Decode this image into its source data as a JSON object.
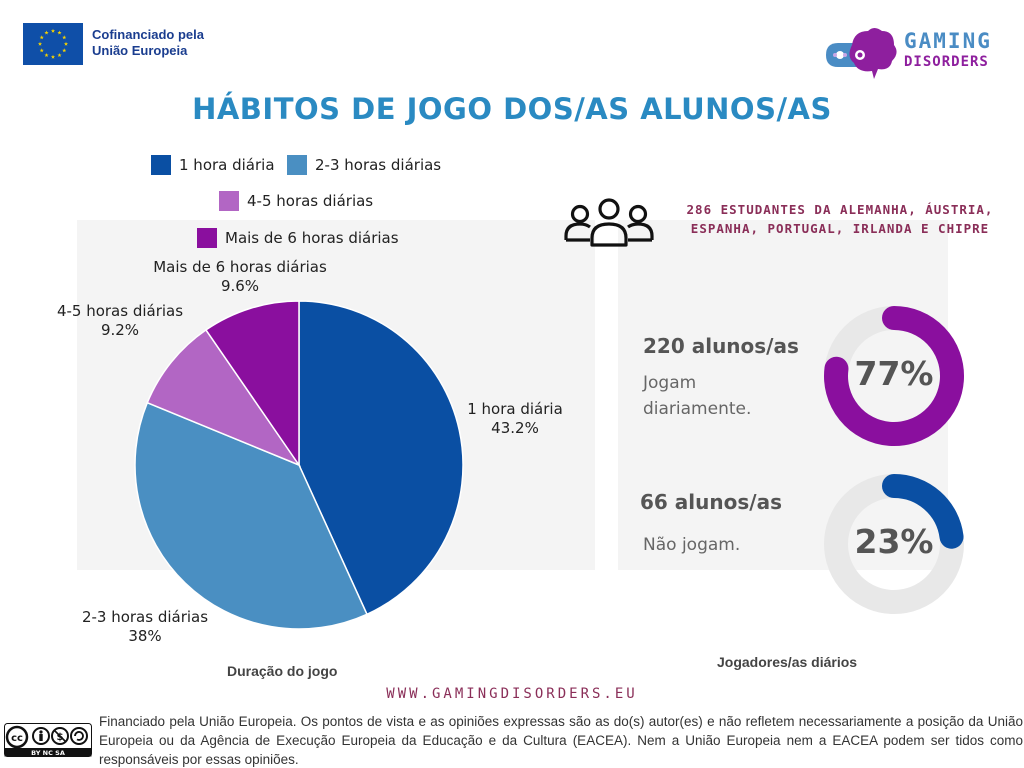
{
  "header": {
    "eu_line1": "Cofinanciado pela",
    "eu_line2": "União Europeia",
    "logo_line1": "GAMING",
    "logo_line2": "DISORDERS"
  },
  "title": "HÁBITOS DE JOGO DOS/AS ALUNOS/AS",
  "colors": {
    "one_hour": "#0a4fa3",
    "two_three": "#4a8fc2",
    "four_five": "#b266c4",
    "six_plus": "#8a0f9e",
    "ring_track": "#e8e8e8",
    "ring_daily": "#8a0f9e",
    "ring_not": "#0a4fa3"
  },
  "chart_data": [
    {
      "type": "pie",
      "xlabel": "Duração do jogo",
      "legend_position": "top",
      "slices": [
        {
          "label": "1 hora diária",
          "value": 43.2,
          "display": "43.2%",
          "color": "#0a4fa3"
        },
        {
          "label": "2-3 horas diárias",
          "value": 38,
          "display": "38%",
          "color": "#4a8fc2"
        },
        {
          "label": "4-5 horas diárias",
          "value": 9.2,
          "display": "9.2%",
          "color": "#b266c4"
        },
        {
          "label": "Mais de 6 horas diárias",
          "value": 9.6,
          "display": "9.6%",
          "color": "#8a0f9e"
        }
      ]
    },
    {
      "type": "pie",
      "xlabel": "Jogadores/as diários",
      "note": "286 ESTUDANTES DA ALEMANHA, ÁUSTRIA, ESPANHA, PORTUGAL, IRLANDA E CHIPRE",
      "stats": [
        {
          "count": "220 alunos/as",
          "desc_line1": "Jogam",
          "desc_line2": "diariamente.",
          "value": 77,
          "display": "77%",
          "color": "#8a0f9e"
        },
        {
          "count": "66 alunos/as",
          "desc_line1": "Não jogam.",
          "desc_line2": "",
          "value": 23,
          "display": "23%",
          "color": "#0a4fa3"
        }
      ]
    }
  ],
  "footer": {
    "website": "WWW.GAMINGDISORDERS.EU",
    "license": "BY NC SA",
    "disclaimer": "Financiado pela União Europeia. Os pontos de vista e as opiniões expressas são as do(s) autor(es) e não refletem necessariamente a posição da União Europeia ou da Agência de Execução Europeia da Educação e da Cultura (EACEA). Nem a União Europeia nem a EACEA podem ser tidos como responsáveis por essas opiniões."
  }
}
